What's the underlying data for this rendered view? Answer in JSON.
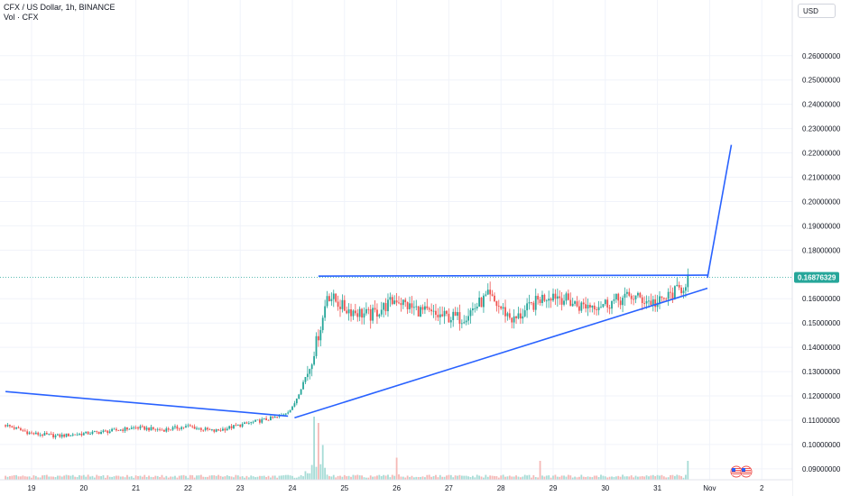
{
  "header": {
    "title": "CFX / US Dollar, 1h, BINANCE",
    "volume_label": "Vol · CFX"
  },
  "currency_button": "USD",
  "colors": {
    "up": "#26a69a",
    "down": "#ef5350",
    "trendline": "#2962ff",
    "current_price_line": "#26a69a",
    "price_tag_bg": "#26a69a"
  },
  "chart_data": {
    "type": "candlestick",
    "x_ticks": [
      "19",
      "20",
      "21",
      "22",
      "23",
      "24",
      "25",
      "26",
      "27",
      "28",
      "29",
      "30",
      "31",
      "Nov",
      "2"
    ],
    "y_ticks": [
      "0.26000000",
      "0.25000000",
      "0.24000000",
      "0.23000000",
      "0.22000000",
      "0.21000000",
      "0.20000000",
      "0.19000000",
      "0.18000000",
      "0.16000000",
      "0.15000000",
      "0.14000000",
      "0.13000000",
      "0.12000000",
      "0.11000000",
      "0.10000000",
      "0.09000000"
    ],
    "ylim": [
      0.0855,
      0.2755
    ],
    "current_price": "0.16876329",
    "trendlines": [
      {
        "from": [
          "18 12:00",
          0.1218
        ],
        "to": [
          "23 22:00",
          0.1117
        ]
      },
      {
        "from": [
          "24 01:00",
          0.111
        ],
        "to": [
          "31 23:00",
          0.1643
        ]
      },
      {
        "from": [
          "24 12:00",
          0.1693
        ],
        "to": [
          "31 23:00",
          0.1697
        ]
      },
      {
        "from": [
          "31 23:00",
          0.1686
        ],
        "to": [
          "1 10:00",
          0.2233
        ]
      }
    ],
    "price_series_hourly_close_from": "18 12:00",
    "anchors": [
      [
        "18 12:00",
        0.108
      ],
      [
        "19 00:00",
        0.1045
      ],
      [
        "19 12:00",
        0.1035
      ],
      [
        "20 00:00",
        0.1045
      ],
      [
        "20 12:00",
        0.1055
      ],
      [
        "21 00:00",
        0.107
      ],
      [
        "21 12:00",
        0.106
      ],
      [
        "22 00:00",
        0.1075
      ],
      [
        "22 12:00",
        0.1055
      ],
      [
        "23 00:00",
        0.108
      ],
      [
        "23 18:00",
        0.1115
      ],
      [
        "24 00:00",
        0.115
      ],
      [
        "24 08:00",
        0.132
      ],
      [
        "24 14:00",
        0.152
      ],
      [
        "24 16:00",
        0.162
      ],
      [
        "25 00:00",
        0.156
      ],
      [
        "25 12:00",
        0.153
      ],
      [
        "26 00:00",
        0.16
      ],
      [
        "26 06:00",
        0.1565
      ],
      [
        "26 18:00",
        0.153
      ],
      [
        "27 06:00",
        0.152
      ],
      [
        "27 18:00",
        0.161
      ],
      [
        "28 06:00",
        0.151
      ],
      [
        "28 18:00",
        0.16
      ],
      [
        "29 00:00",
        0.162
      ],
      [
        "29 12:00",
        0.157
      ],
      [
        "30 00:00",
        0.158
      ],
      [
        "30 12:00",
        0.161
      ],
      [
        "31 00:00",
        0.158
      ],
      [
        "31 12:00",
        0.165
      ],
      [
        "31 14:00",
        0.1688
      ]
    ],
    "volume_peaks": [
      [
        "24 10:00",
        1.0
      ],
      [
        "24 12:00",
        0.9
      ],
      [
        "24 14:00",
        0.55
      ],
      [
        "26 00:00",
        0.35
      ],
      [
        "28 18:00",
        0.3
      ],
      [
        "31 14:00",
        0.3
      ]
    ]
  }
}
